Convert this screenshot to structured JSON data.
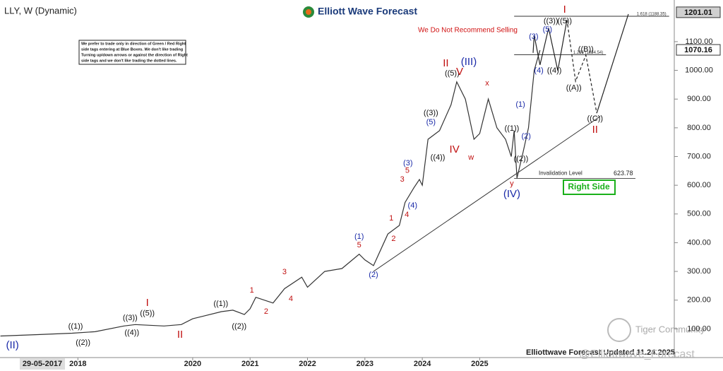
{
  "chart_data": {
    "type": "line",
    "title": "LLY, W (Dynamic)",
    "x": [
      2016.65,
      2017.3,
      2017.9,
      2018.3,
      2018.8,
      2019.0,
      2019.5,
      2019.8,
      2020.0,
      2020.2,
      2020.5,
      2020.7,
      2020.9,
      2021.0,
      2021.1,
      2021.4,
      2021.6,
      2021.9,
      2022.0,
      2022.3,
      2022.6,
      2022.9,
      2023.0,
      2023.15,
      2023.4,
      2023.6,
      2023.7,
      2023.85,
      2023.95,
      2024.0,
      2024.1,
      2024.3,
      2024.5,
      2024.6,
      2024.75,
      2024.9,
      2025.0,
      2025.15,
      2025.3,
      2025.45,
      2025.55,
      2025.6,
      2025.65,
      2025.75,
      2025.85,
      2025.95,
      2026.05
    ],
    "series": [
      {
        "color": "#333333",
        "values": [
          75,
          80,
          85,
          90,
          110,
          115,
          110,
          115,
          135,
          145,
          160,
          165,
          150,
          170,
          210,
          190,
          240,
          280,
          245,
          300,
          310,
          360,
          340,
          320,
          430,
          460,
          540,
          590,
          620,
          600,
          760,
          790,
          880,
          960,
          900,
          760,
          780,
          900,
          800,
          760,
          700,
          790,
          625,
          710,
          800,
          1000,
          1070
        ]
      }
    ],
    "projections": [
      {
        "x": [
          2025.93,
          2025.95,
          2026.05,
          2026.2,
          2026.36,
          2026.52
        ],
        "values": [
          1061,
          1122,
          1019,
          1147,
          999,
          1176
        ],
        "dash": false
      },
      {
        "x": [
          2026.52,
          2026.67,
          2026.85,
          2027.04
        ],
        "values": [
          1176,
          962,
          1053,
          851
        ],
        "dash": true
      },
      {
        "x": [
          2027.04,
          2027.59
        ],
        "values": [
          851,
          1196
        ],
        "dash": false
      }
    ],
    "trendline": {
      "x": [
        2023.15,
        2027.1
      ],
      "values": [
        300,
        840
      ]
    },
    "xlim": [
      2016.643,
      2028.39
    ],
    "ylim": [
      0,
      1245
    ],
    "xticks": [
      2018,
      2020,
      2021,
      2022,
      2023,
      2024,
      2025
    ],
    "start_date": "29-05-2017",
    "yticks": [
      {
        "value": 100,
        "label": "100.00"
      },
      {
        "value": 200,
        "label": "200.00"
      },
      {
        "value": 300,
        "label": "300.00"
      },
      {
        "value": 400,
        "label": "400.00"
      },
      {
        "value": 500,
        "label": "500.00"
      },
      {
        "value": 600,
        "label": "600.00"
      },
      {
        "value": 700,
        "label": "700.00"
      },
      {
        "value": 800,
        "label": "800.00"
      },
      {
        "value": 900,
        "label": "900.00"
      },
      {
        "value": 1000,
        "label": "1000.00"
      },
      {
        "value": 1100,
        "label": "1100.00"
      }
    ],
    "price_tags": [
      {
        "value": 1201.01,
        "color": "#d0d0d0"
      },
      {
        "value": 1070.16,
        "color": "#ffffff"
      }
    ],
    "fib_levels": [
      {
        "value": 1188.35,
        "label": "1.618 (1188.35)",
        "x": [
          2025.6,
          2028.3
        ]
      },
      {
        "value": 1054.54,
        "label": "1.236 (1054.54)",
        "x": [
          2025.6,
          2027.2
        ]
      }
    ],
    "invalidation": {
      "label": "Invalidation Level",
      "value": 623.78
    },
    "annotations": [
      {
        "text": "(II)",
        "x": 2016.86,
        "y": 42,
        "color": "#1a2aa8"
      },
      {
        "text": "((1))",
        "x": 2017.96,
        "y": 108,
        "color": "#111"
      },
      {
        "text": "((2))",
        "x": 2018.09,
        "y": 52,
        "color": "#111"
      },
      {
        "text": "((3))",
        "x": 2018.91,
        "y": 138,
        "color": "#111"
      },
      {
        "text": "((4))",
        "x": 2018.94,
        "y": 86,
        "color": "#111"
      },
      {
        "text": "((5))",
        "x": 2019.21,
        "y": 153,
        "color": "#111"
      },
      {
        "text": "I",
        "x": 2019.21,
        "y": 189,
        "color": "#c01010"
      },
      {
        "text": "II",
        "x": 2019.78,
        "y": 79,
        "color": "#c01010"
      },
      {
        "text": "((1))",
        "x": 2020.49,
        "y": 187,
        "color": "#111"
      },
      {
        "text": "((2))",
        "x": 2020.81,
        "y": 108,
        "color": "#111"
      },
      {
        "text": "1",
        "x": 2021.03,
        "y": 234,
        "color": "#c01010"
      },
      {
        "text": "2",
        "x": 2021.28,
        "y": 160,
        "color": "#c01010"
      },
      {
        "text": "3",
        "x": 2021.6,
        "y": 298,
        "color": "#c01010"
      },
      {
        "text": "4",
        "x": 2021.71,
        "y": 204,
        "color": "#c01010"
      },
      {
        "text": "(1)",
        "x": 2022.9,
        "y": 421,
        "color": "#1a2aa8"
      },
      {
        "text": "5",
        "x": 2022.9,
        "y": 391,
        "color": "#c01010"
      },
      {
        "text": "(2)",
        "x": 2023.15,
        "y": 288,
        "color": "#1a2aa8"
      },
      {
        "text": "1",
        "x": 2023.46,
        "y": 485,
        "color": "#c01010"
      },
      {
        "text": "2",
        "x": 2023.5,
        "y": 413,
        "color": "#c01010"
      },
      {
        "text": "3",
        "x": 2023.65,
        "y": 620,
        "color": "#c01010"
      },
      {
        "text": "(3)",
        "x": 2023.75,
        "y": 677,
        "color": "#1a2aa8"
      },
      {
        "text": "5",
        "x": 2023.74,
        "y": 650,
        "color": "#c01010"
      },
      {
        "text": "4",
        "x": 2023.73,
        "y": 497,
        "color": "#c01010"
      },
      {
        "text": "(4)",
        "x": 2023.83,
        "y": 529,
        "color": "#1a2aa8"
      },
      {
        "text": "((3))",
        "x": 2024.15,
        "y": 851,
        "color": "#111"
      },
      {
        "text": "(5)",
        "x": 2024.15,
        "y": 819,
        "color": "#1a2aa8"
      },
      {
        "text": "((4))",
        "x": 2024.27,
        "y": 696,
        "color": "#111"
      },
      {
        "text": "IV",
        "x": 2024.56,
        "y": 723,
        "color": "#c01010"
      },
      {
        "text": "((5))",
        "x": 2024.52,
        "y": 989,
        "color": "#111"
      },
      {
        "text": "II",
        "x": 2024.41,
        "y": 1024,
        "color": "#c01010"
      },
      {
        "text": "(III)",
        "x": 2024.81,
        "y": 1029,
        "color": "#1a2aa8"
      },
      {
        "text": "V",
        "x": 2024.65,
        "y": 994,
        "color": "#c01010"
      },
      {
        "text": "x",
        "x": 2025.13,
        "y": 955,
        "color": "#c01010"
      },
      {
        "text": "w",
        "x": 2024.85,
        "y": 696,
        "color": "#c01010"
      },
      {
        "text": "((1))",
        "x": 2025.56,
        "y": 797,
        "color": "#111"
      },
      {
        "text": "(1)",
        "x": 2025.71,
        "y": 881,
        "color": "#1a2aa8"
      },
      {
        "text": "(2)",
        "x": 2025.81,
        "y": 770,
        "color": "#1a2aa8"
      },
      {
        "text": "((2))",
        "x": 2025.72,
        "y": 691,
        "color": "#111"
      },
      {
        "text": "y",
        "x": 2025.56,
        "y": 605,
        "color": "#c01010"
      },
      {
        "text": "(IV)",
        "x": 2025.56,
        "y": 568,
        "color": "#1a2aa8"
      },
      {
        "text": "(3)",
        "x": 2025.94,
        "y": 1117,
        "color": "#1a2aa8"
      },
      {
        "text": "(4)",
        "x": 2026.03,
        "y": 999,
        "color": "#1a2aa8"
      },
      {
        "text": "(5)",
        "x": 2026.18,
        "y": 1142,
        "color": "#1a2aa8"
      },
      {
        "text": "((3))",
        "x": 2026.24,
        "y": 1171,
        "color": "#111"
      },
      {
        "text": "((4))",
        "x": 2026.3,
        "y": 999,
        "color": "#111"
      },
      {
        "text": "((5))",
        "x": 2026.48,
        "y": 1171,
        "color": "#111"
      },
      {
        "text": "I",
        "x": 2026.48,
        "y": 1211,
        "color": "#c01010"
      },
      {
        "text": "((B))",
        "x": 2026.85,
        "y": 1073,
        "color": "#111"
      },
      {
        "text": "((A))",
        "x": 2026.64,
        "y": 938,
        "color": "#111"
      },
      {
        "text": "((C))",
        "x": 2027.01,
        "y": 832,
        "color": "#111"
      },
      {
        "text": "II",
        "x": 2027.01,
        "y": 792,
        "color": "#c01010"
      }
    ]
  },
  "header": {
    "logo": "Elliott Wave Forecast",
    "warning": "We Do Not Recommend Selling",
    "right_side": "Right Side",
    "updated": "Elliottwave Forecast Updated 11.24.2025",
    "watermark": "Tiger Community",
    "handle": "@Elliottwave_Forecast",
    "disclaimer": [
      "We prefer to trade only in direction of Green / Red Right",
      "side tags entering at Blue Boxes. We don't like trading",
      "Turning up/down arrows or against the direction of Right",
      "side tags and we don't like trading the dotted lines."
    ]
  }
}
